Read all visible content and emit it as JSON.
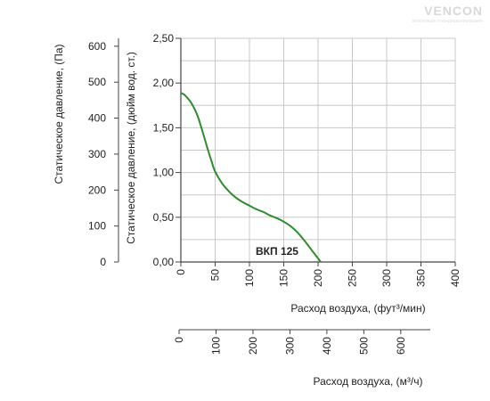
{
  "logo": {
    "text": "VENCON",
    "tagline": "вентиляция и кондиционирование"
  },
  "chart_data": {
    "type": "line",
    "series": [
      {
        "name": "ВКП 125",
        "color": "#2e8b2e",
        "x": [
          0,
          5,
          10,
          15,
          20,
          25,
          30,
          35,
          40,
          45,
          50,
          60,
          70,
          80,
          90,
          100,
          110,
          120,
          130,
          140,
          150,
          160,
          170,
          180,
          190,
          200,
          204
        ],
        "y": [
          1.89,
          1.87,
          1.83,
          1.78,
          1.71,
          1.62,
          1.5,
          1.37,
          1.24,
          1.12,
          1.01,
          0.88,
          0.79,
          0.72,
          0.67,
          0.63,
          0.59,
          0.56,
          0.52,
          0.49,
          0.45,
          0.4,
          0.33,
          0.24,
          0.14,
          0.04,
          0.0
        ]
      }
    ],
    "xaxis": {
      "label": "Расход воздуха, (фут³/мин)",
      "range": [
        0,
        400
      ],
      "ticks": [
        0,
        50,
        100,
        150,
        200,
        250,
        300,
        350,
        400
      ]
    },
    "yaxis": {
      "label": "Статическое давление, (дюйм вод. ст.)",
      "range": [
        0,
        2.5
      ],
      "ticks": [
        "0,00",
        "0,50",
        "1,00",
        "1,50",
        "2,00",
        "2,50"
      ],
      "tick_values": [
        0,
        0.5,
        1,
        1.5,
        2,
        2.5
      ],
      "minor_step": 0.25
    },
    "yaxis_secondary": {
      "label": "Статическое давление, (Па)",
      "range": [
        0,
        622
      ],
      "ticks": [
        "0",
        "100",
        "200",
        "300",
        "400",
        "500",
        "600"
      ],
      "tick_values": [
        0,
        100,
        200,
        300,
        400,
        500,
        600
      ]
    },
    "xaxis_secondary": {
      "label": "Расход воздуха, (м³/ч)",
      "range": [
        0,
        680
      ],
      "ticks": [
        "0",
        "100",
        "200",
        "300",
        "400",
        "500",
        "600"
      ],
      "tick_values": [
        0,
        100,
        200,
        300,
        400,
        500,
        600
      ]
    },
    "grid": true
  }
}
